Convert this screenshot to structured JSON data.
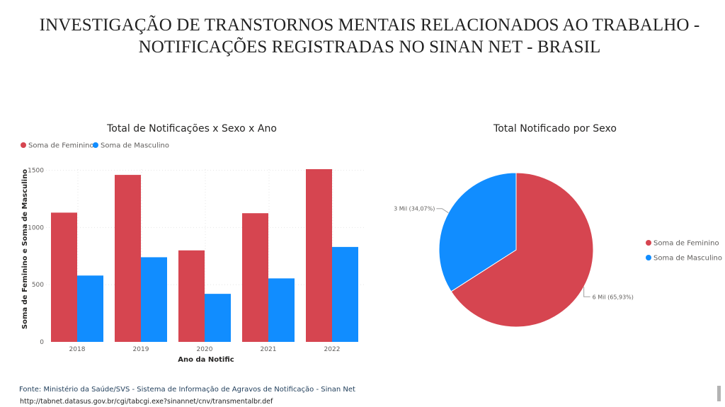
{
  "page": {
    "title_line1": "INVESTIGAÇÃO DE TRANSTORNOS MENTAIS RELACIONADOS AO TRABALHO -",
    "title_line2": "NOTIFICAÇÕES REGISTRADAS NO SINAN NET - BRASIL",
    "source": "Fonte: Ministério da Saúde/SVS - Sistema de Informação de Agravos de Notificação - Sinan Net",
    "source_url": "http://tabnet.datasus.gov.br/cgi/tabcgi.exe?sinannet/cnv/transmentalbr.def"
  },
  "colors": {
    "feminino": "#D64550",
    "masculino": "#118DFF"
  },
  "chart_data": [
    {
      "type": "bar",
      "title": "Total de Notificações x Sexo x Ano",
      "xlabel": "Ano da Notific",
      "ylabel": "Soma de Feminino e Soma de Masculino",
      "categories": [
        "2018",
        "2019",
        "2020",
        "2021",
        "2022"
      ],
      "series": [
        {
          "name": "Soma de Feminino",
          "values": [
            1130,
            1460,
            800,
            1125,
            1510
          ]
        },
        {
          "name": "Soma de Masculino",
          "values": [
            580,
            740,
            420,
            555,
            830
          ]
        }
      ],
      "yticks": [
        0,
        500,
        1000,
        1500
      ],
      "ylim": [
        0,
        1510
      ],
      "legend": "top-left",
      "grid": true
    },
    {
      "type": "pie",
      "title": "Total Notificado por Sexo",
      "labels": [
        "Soma de Feminino",
        "Soma de Masculino"
      ],
      "values": [
        65.93,
        34.07
      ],
      "data_labels": [
        "6 Mil (65,93%)",
        "3 Mil (34,07%)"
      ],
      "legend": "right"
    }
  ]
}
